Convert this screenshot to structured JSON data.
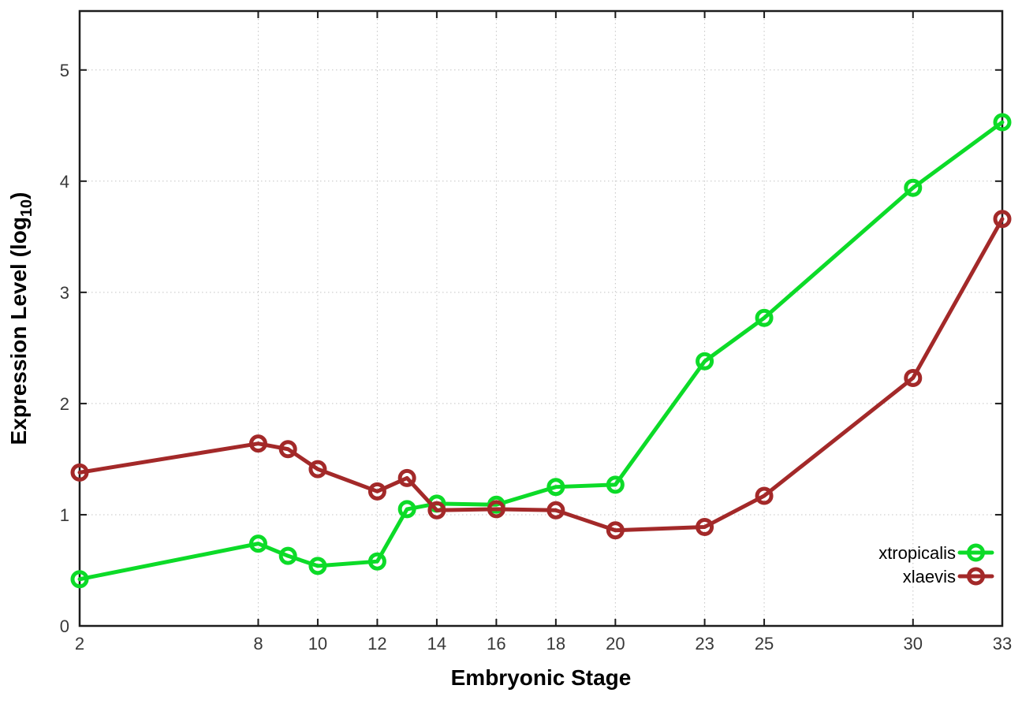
{
  "figure": {
    "xlabel": "Embryonic Stage",
    "ylabel_prefix": "Expression Level (log",
    "ylabel_subscript": "10",
    "ylabel_suffix": ")"
  },
  "legend": {
    "entries": [
      {
        "label": "xtropicalis",
        "color": "#0cdb28"
      },
      {
        "label": "xlaevis",
        "color": "#a32929"
      }
    ]
  },
  "chart_data": {
    "type": "line",
    "title": "",
    "xlabel": "Embryonic Stage",
    "ylabel": "Expression Level (log10)",
    "x": [
      2,
      8,
      9,
      10,
      12,
      13,
      14,
      16,
      18,
      20,
      23,
      25,
      30,
      33
    ],
    "x_ticks": [
      2,
      8,
      10,
      12,
      14,
      16,
      18,
      20,
      23,
      25,
      30,
      33
    ],
    "y_ticks": [
      0,
      1,
      2,
      3,
      4,
      5
    ],
    "xlim": [
      2,
      33
    ],
    "ylim": [
      0,
      5.53
    ],
    "grid": true,
    "marker": "open-circle",
    "legend_position": "inside-bottom-right",
    "series": [
      {
        "name": "xtropicalis",
        "color": "#0cdb28",
        "values": [
          0.42,
          0.74,
          0.63,
          0.54,
          0.58,
          1.05,
          1.1,
          1.09,
          1.25,
          1.27,
          2.38,
          2.77,
          3.94,
          4.53
        ]
      },
      {
        "name": "xlaevis",
        "color": "#a32929",
        "values": [
          1.38,
          1.64,
          1.59,
          1.41,
          1.21,
          1.33,
          1.04,
          1.05,
          1.04,
          0.86,
          0.89,
          1.17,
          2.23,
          3.66
        ]
      }
    ],
    "colors": {
      "grid": "#c4c4c4",
      "border": "#1c1c1c",
      "tick_text": "#383838",
      "label_text": "#000000"
    }
  }
}
